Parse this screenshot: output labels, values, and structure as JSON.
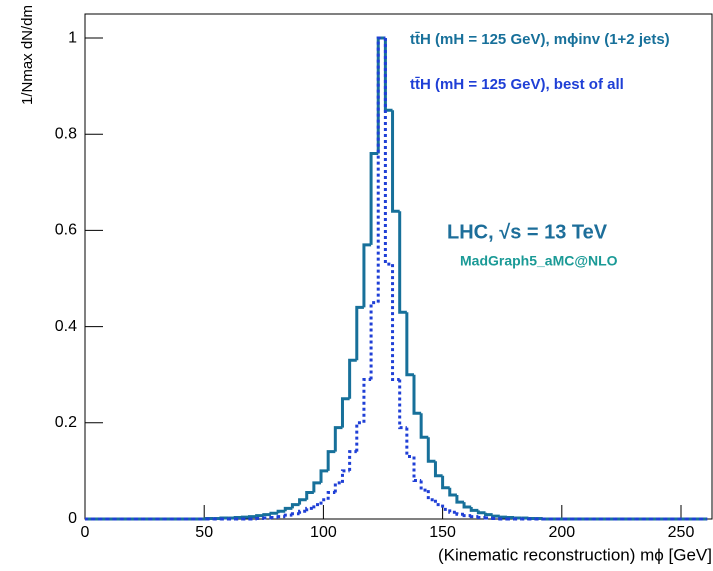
{
  "chart_data": {
    "type": "histogram",
    "x_label": "(Kinematic reconstruction) mϕ [GeV]",
    "y_label": "1/Nmax dN/dm",
    "annotations": [
      "LHC, √s = 13 TeV",
      "MadGraph5_aMC@NLO"
    ],
    "bins": [
      0,
      3,
      6,
      9,
      12,
      15,
      18,
      21,
      24,
      27,
      30,
      33,
      36,
      39,
      42,
      45,
      48,
      51,
      54,
      57,
      60,
      63,
      66,
      69,
      72,
      75,
      78,
      81,
      84,
      87,
      90,
      93,
      96,
      99,
      102,
      105,
      108,
      111,
      114,
      117,
      120,
      123,
      126,
      129,
      132,
      135,
      138,
      141,
      144,
      147,
      150,
      153,
      156,
      159,
      162,
      165,
      168,
      171,
      174,
      177,
      180,
      183,
      186,
      189,
      192,
      195,
      198,
      201,
      204,
      207,
      210,
      213,
      216,
      219,
      222,
      225,
      228,
      231,
      234,
      237,
      240,
      243,
      246,
      249,
      252,
      255,
      258,
      261
    ],
    "series": [
      {
        "name": "tt̄H (mH = 125 GeV), mϕinv (1+2 jets)",
        "color": "#17709a",
        "dash": false,
        "values": [
          0,
          0,
          0,
          0,
          0,
          0,
          0,
          0,
          0,
          0,
          0,
          0,
          0,
          0,
          0,
          0,
          0,
          0.001,
          0.001,
          0.002,
          0.002,
          0.003,
          0.004,
          0.005,
          0.007,
          0.009,
          0.012,
          0.016,
          0.022,
          0.03,
          0.04,
          0.055,
          0.075,
          0.1,
          0.14,
          0.19,
          0.25,
          0.33,
          0.44,
          0.57,
          0.76,
          1.0,
          0.85,
          0.64,
          0.43,
          0.3,
          0.22,
          0.17,
          0.12,
          0.09,
          0.065,
          0.05,
          0.035,
          0.025,
          0.018,
          0.013,
          0.009,
          0.006,
          0.004,
          0.003,
          0.002,
          0.002,
          0.001,
          0.001,
          0,
          0,
          0,
          0,
          0,
          0,
          0,
          0,
          0,
          0,
          0,
          0,
          0,
          0,
          0,
          0,
          0,
          0,
          0,
          0,
          0,
          0,
          0
        ]
      },
      {
        "name": "tt̄H (mH = 125 GeV), best of all",
        "color": "#1f3fd6",
        "dash": true,
        "values": [
          0,
          0,
          0,
          0,
          0,
          0,
          0,
          0,
          0,
          0,
          0,
          0,
          0,
          0,
          0,
          0,
          0,
          0,
          0,
          0,
          0,
          0,
          0,
          0,
          0.001,
          0.002,
          0.003,
          0.005,
          0.008,
          0.011,
          0.016,
          0.022,
          0.03,
          0.04,
          0.055,
          0.075,
          0.1,
          0.14,
          0.2,
          0.29,
          0.45,
          1.0,
          0.53,
          0.29,
          0.19,
          0.13,
          0.08,
          0.06,
          0.04,
          0.03,
          0.02,
          0.014,
          0.01,
          0.007,
          0.005,
          0.003,
          0.002,
          0.001,
          0,
          0,
          0,
          0,
          0,
          0,
          0,
          0,
          0,
          0,
          0,
          0,
          0,
          0,
          0,
          0,
          0,
          0,
          0,
          0,
          0,
          0,
          0,
          0,
          0,
          0,
          0,
          0,
          0
        ]
      }
    ],
    "xlim": [
      0,
      263
    ],
    "ylim": [
      0,
      1.05
    ],
    "xticks": [
      0,
      50,
      100,
      150,
      200,
      250
    ],
    "yticks": [
      0,
      0.2,
      0.4,
      0.6,
      0.8,
      1
    ]
  }
}
